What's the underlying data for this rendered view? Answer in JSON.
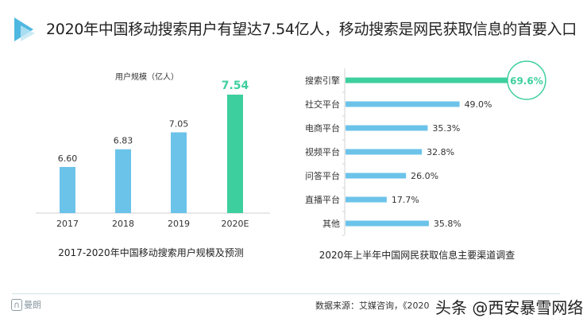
{
  "title": "2020年中国移动搜索用户有望达7.54亿人，移动搜索是网民获取信息的首要入口",
  "colors": {
    "blue": "#6cc3ea",
    "green": "#3ecf9e",
    "accent_icon": "#4fb8e0"
  },
  "chart_data": [
    {
      "type": "bar",
      "title": "2017-2020年中国移动搜索用户规模及预测",
      "ylabel": "用户规模（亿人）",
      "categories": [
        "2017",
        "2018",
        "2019",
        "2020E"
      ],
      "values": [
        6.6,
        6.83,
        7.05,
        7.54
      ],
      "labels": [
        "6.60",
        "6.83",
        "7.05",
        "7.54"
      ],
      "highlight_index": 3,
      "grid": false
    },
    {
      "type": "bar",
      "orientation": "horizontal",
      "title": "2020年上半年中国网民获取信息主要渠道调查",
      "categories": [
        "搜索引擎",
        "社交平台",
        "电商平台",
        "视频平台",
        "问答平台",
        "直播平台",
        "其他"
      ],
      "values": [
        69.6,
        49.0,
        35.3,
        32.8,
        26.0,
        17.7,
        35.8
      ],
      "labels": [
        "69.6%",
        "49.0%",
        "35.3%",
        "32.8%",
        "26.0%",
        "17.7%",
        "35.8%"
      ],
      "highlight_index": 0,
      "grid": false
    }
  ],
  "footer": {
    "brand": "曼朗",
    "source": "数据来源：艾媒咨询，《2020",
    "watermark": "头条 @西安暴雪网络"
  }
}
